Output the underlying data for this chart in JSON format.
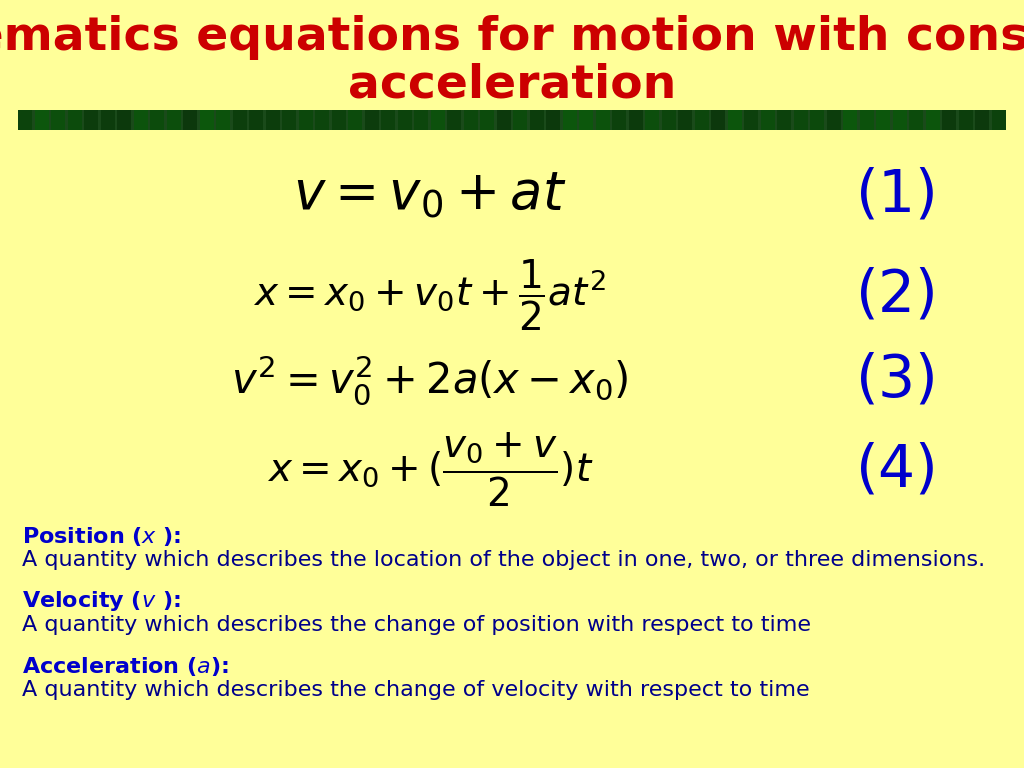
{
  "background_color": "#FFFF99",
  "title_line1": "Kinematics equations for motion with constant",
  "title_line2": "acceleration",
  "title_color": "#CC0000",
  "title_fontsize": 34,
  "eq_color": "#000000",
  "eq1_fontsize": 38,
  "eq_fontsize": 28,
  "num_color": "#0000CC",
  "num_fontsize": 42,
  "separator_color": "#1a4a1a",
  "pos_desc": "A quantity which describes the location of the object in one, two, or three dimensions.",
  "vel_desc": "A quantity which describes the change of position with respect to time",
  "acc_desc": "A quantity which describes the change of velocity with respect to time",
  "label_color": "#0000CC",
  "desc_color": "#00008B",
  "label_fontsize": 16,
  "desc_fontsize": 16
}
